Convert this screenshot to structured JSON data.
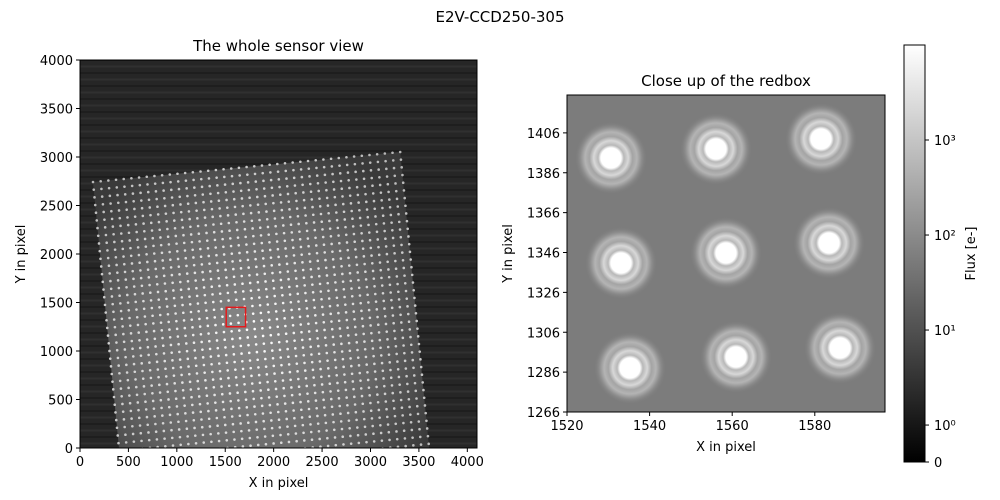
{
  "title": "E2V-CCD250-305",
  "chart_data": [
    {
      "type": "image",
      "title": "The whole sensor view",
      "xlabel": "X in pixel",
      "ylabel": "Y in pixel",
      "xlim": [
        0,
        4100
      ],
      "ylim": [
        0,
        4000
      ],
      "xticks": [
        0,
        500,
        1000,
        1500,
        2000,
        2500,
        3000,
        3500,
        4000
      ],
      "yticks": [
        0,
        500,
        1000,
        1500,
        2000,
        2500,
        3000,
        3500,
        4000
      ],
      "redbox": {
        "x": [
          1510,
          1710
        ],
        "y": [
          1250,
          1450
        ],
        "color": "#e41a1c"
      }
    },
    {
      "type": "image",
      "title": "Close up of the redbox",
      "xlabel": "X in pixel",
      "ylabel": "Y in pixel",
      "xlim": [
        1520,
        1597
      ],
      "ylim": [
        1266,
        1425
      ],
      "xticks": [
        1520,
        1540,
        1560,
        1580
      ],
      "yticks": [
        1266,
        1286,
        1306,
        1326,
        1346,
        1366,
        1386,
        1406
      ]
    },
    {
      "type": "colorbar",
      "ylabel": "Flux [e-]",
      "scale": "symlog",
      "linthresh": 1,
      "linscale": 0.35,
      "ylim": [
        0,
        10000
      ],
      "yticks": [
        0,
        {
          "value": 1,
          "label": "10⁰"
        },
        {
          "value": 10,
          "label": "10¹"
        },
        {
          "value": 100,
          "label": "10²"
        },
        {
          "value": 1000,
          "label": "10³"
        }
      ]
    }
  ]
}
